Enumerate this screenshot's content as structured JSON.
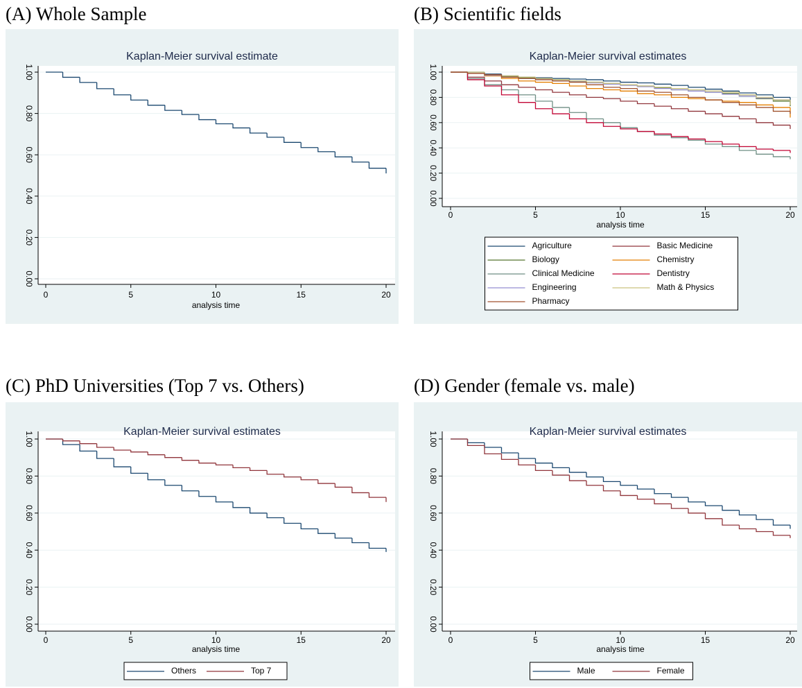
{
  "chart_data": [
    {
      "type": "line",
      "step": true,
      "panel_title": "(A) Whole Sample",
      "title": "Kaplan-Meier survival estimate",
      "x_label": "analysis time",
      "x": [
        0,
        1,
        2,
        3,
        4,
        5,
        6,
        7,
        8,
        9,
        10,
        11,
        12,
        13,
        14,
        15,
        16,
        17,
        18,
        19,
        20
      ],
      "values": [
        1,
        0.975,
        0.95,
        0.92,
        0.89,
        0.865,
        0.84,
        0.815,
        0.795,
        0.77,
        0.75,
        0.73,
        0.705,
        0.685,
        0.66,
        0.635,
        0.615,
        0.59,
        0.565,
        0.535,
        0.51
      ],
      "color": "#1a476f",
      "xlim": [
        0,
        20
      ],
      "xticks": [
        0,
        5,
        10,
        15,
        20
      ],
      "ylim": [
        0,
        1
      ],
      "yticks": [
        {
          "value": 0,
          "label": "0.00"
        },
        {
          "value": 0.2,
          "label": "0.20"
        },
        {
          "value": 0.4,
          "label": "0.40"
        },
        {
          "value": 0.6,
          "label": "0.60"
        },
        {
          "value": 0.8,
          "label": "0.80"
        },
        {
          "value": 1,
          "label": "1.00"
        }
      ],
      "grid": true
    },
    {
      "type": "line",
      "step": true,
      "panel_title": "(B) Scientific fields",
      "title": "Kaplan-Meier survival estimates",
      "x_label": "analysis time",
      "x": [
        0,
        1,
        2,
        3,
        4,
        5,
        6,
        7,
        8,
        9,
        10,
        11,
        12,
        13,
        14,
        15,
        16,
        17,
        18,
        19,
        20
      ],
      "series": [
        {
          "name": "Agriculture",
          "color": "#1a476f",
          "values": [
            1,
            1,
            0.985,
            0.97,
            0.96,
            0.955,
            0.95,
            0.945,
            0.94,
            0.93,
            0.92,
            0.915,
            0.905,
            0.895,
            0.88,
            0.865,
            0.85,
            0.835,
            0.82,
            0.8,
            0.76
          ]
        },
        {
          "name": "Basic Medicine",
          "color": "#90353b",
          "values": [
            1,
            0.96,
            0.93,
            0.9,
            0.88,
            0.86,
            0.84,
            0.82,
            0.8,
            0.79,
            0.77,
            0.75,
            0.73,
            0.71,
            0.69,
            0.67,
            0.65,
            0.63,
            0.6,
            0.58,
            0.55
          ]
        },
        {
          "name": "Biology",
          "color": "#55752f",
          "values": [
            1,
            0.99,
            0.975,
            0.965,
            0.955,
            0.95,
            0.94,
            0.93,
            0.92,
            0.91,
            0.9,
            0.89,
            0.875,
            0.86,
            0.85,
            0.84,
            0.83,
            0.81,
            0.79,
            0.77,
            0.73
          ]
        },
        {
          "name": "Chemistry",
          "color": "#e37e00",
          "values": [
            1,
            0.99,
            0.97,
            0.95,
            0.93,
            0.92,
            0.91,
            0.89,
            0.87,
            0.86,
            0.85,
            0.83,
            0.82,
            0.8,
            0.79,
            0.78,
            0.77,
            0.76,
            0.74,
            0.72,
            0.64
          ]
        },
        {
          "name": "Clinical Medicine",
          "color": "#6e8e84",
          "values": [
            1,
            0.95,
            0.9,
            0.86,
            0.82,
            0.77,
            0.72,
            0.68,
            0.63,
            0.6,
            0.56,
            0.53,
            0.5,
            0.48,
            0.46,
            0.43,
            0.41,
            0.38,
            0.35,
            0.33,
            0.31
          ]
        },
        {
          "name": "Dentistry",
          "color": "#c10534",
          "values": [
            1,
            0.94,
            0.89,
            0.82,
            0.76,
            0.71,
            0.67,
            0.63,
            0.6,
            0.57,
            0.55,
            0.53,
            0.51,
            0.49,
            0.47,
            0.45,
            0.43,
            0.41,
            0.39,
            0.38,
            0.36
          ]
        },
        {
          "name": "Engineering",
          "color": "#938dd2",
          "values": [
            1,
            0.99,
            0.975,
            0.96,
            0.95,
            0.94,
            0.93,
            0.925,
            0.915,
            0.905,
            0.895,
            0.885,
            0.87,
            0.86,
            0.85,
            0.84,
            0.825,
            0.81,
            0.795,
            0.78,
            0.75
          ]
        },
        {
          "name": "Math & Physics",
          "color": "#cac27e",
          "values": [
            1,
            1,
            0.98,
            0.97,
            0.96,
            0.95,
            0.94,
            0.93,
            0.92,
            0.91,
            0.9,
            0.89,
            0.88,
            0.87,
            0.86,
            0.85,
            0.84,
            0.82,
            0.8,
            0.78,
            0.74
          ]
        },
        {
          "name": "Pharmacy",
          "color": "#a0522d",
          "values": [
            1,
            0.99,
            0.98,
            0.96,
            0.95,
            0.94,
            0.93,
            0.92,
            0.9,
            0.88,
            0.87,
            0.85,
            0.84,
            0.82,
            0.8,
            0.78,
            0.76,
            0.74,
            0.72,
            0.69,
            0.67
          ]
        }
      ],
      "xlim": [
        0,
        20
      ],
      "xticks": [
        0,
        5,
        10,
        15,
        20
      ],
      "ylim": [
        0,
        1
      ],
      "yticks": [
        {
          "value": 0,
          "label": "0.00"
        },
        {
          "value": 0.2,
          "label": "0.20"
        },
        {
          "value": 0.4,
          "label": "0.40"
        },
        {
          "value": 0.6,
          "label": "0.60"
        },
        {
          "value": 0.8,
          "label": "0.80"
        },
        {
          "value": 1,
          "label": "1.00"
        }
      ],
      "grid": true,
      "legend": "bottom"
    },
    {
      "type": "line",
      "step": true,
      "panel_title": "(C) PhD Universities (Top 7 vs. Others)",
      "title": "Kaplan-Meier survival estimates",
      "x_label": "analysis time",
      "x": [
        0,
        1,
        2,
        3,
        4,
        5,
        6,
        7,
        8,
        9,
        10,
        11,
        12,
        13,
        14,
        15,
        16,
        17,
        18,
        19,
        20
      ],
      "series": [
        {
          "name": "Others",
          "color": "#1a476f",
          "values": [
            1,
            0.97,
            0.935,
            0.895,
            0.85,
            0.815,
            0.78,
            0.75,
            0.72,
            0.69,
            0.66,
            0.63,
            0.6,
            0.575,
            0.545,
            0.515,
            0.49,
            0.465,
            0.44,
            0.41,
            0.39
          ]
        },
        {
          "name": "Top 7",
          "color": "#90353b",
          "values": [
            1,
            0.99,
            0.975,
            0.955,
            0.94,
            0.93,
            0.915,
            0.9,
            0.885,
            0.87,
            0.86,
            0.845,
            0.83,
            0.81,
            0.795,
            0.78,
            0.76,
            0.74,
            0.71,
            0.685,
            0.66
          ]
        }
      ],
      "xlim": [
        0,
        20
      ],
      "xticks": [
        0,
        5,
        10,
        15,
        20
      ],
      "ylim": [
        0,
        1
      ],
      "yticks": [
        {
          "value": 0,
          "label": "0.00"
        },
        {
          "value": 0.2,
          "label": "0.20"
        },
        {
          "value": 0.4,
          "label": "0.40"
        },
        {
          "value": 0.6,
          "label": "0.60"
        },
        {
          "value": 0.8,
          "label": "0.80"
        },
        {
          "value": 1,
          "label": "1.00"
        }
      ],
      "grid": true,
      "legend": "bottom"
    },
    {
      "type": "line",
      "step": true,
      "panel_title": "(D) Gender (female vs. male)",
      "title": "Kaplan-Meier survival estimates",
      "x_label": "analysis time",
      "x": [
        0,
        1,
        2,
        3,
        4,
        5,
        6,
        7,
        8,
        9,
        10,
        11,
        12,
        13,
        14,
        15,
        16,
        17,
        18,
        19,
        20
      ],
      "series": [
        {
          "name": "Male",
          "color": "#1a476f",
          "values": [
            1,
            0.98,
            0.955,
            0.925,
            0.895,
            0.87,
            0.845,
            0.82,
            0.795,
            0.77,
            0.75,
            0.73,
            0.705,
            0.685,
            0.66,
            0.64,
            0.615,
            0.59,
            0.565,
            0.535,
            0.515
          ]
        },
        {
          "name": "Female",
          "color": "#90353b",
          "values": [
            1,
            0.965,
            0.92,
            0.89,
            0.86,
            0.83,
            0.805,
            0.775,
            0.75,
            0.72,
            0.695,
            0.675,
            0.65,
            0.625,
            0.6,
            0.57,
            0.535,
            0.515,
            0.5,
            0.48,
            0.465
          ]
        }
      ],
      "xlim": [
        0,
        20
      ],
      "xticks": [
        0,
        5,
        10,
        15,
        20
      ],
      "ylim": [
        0,
        1
      ],
      "yticks": [
        {
          "value": 0,
          "label": "0.00"
        },
        {
          "value": 0.2,
          "label": "0.20"
        },
        {
          "value": 0.4,
          "label": "0.40"
        },
        {
          "value": 0.6,
          "label": "0.60"
        },
        {
          "value": 0.8,
          "label": "0.80"
        },
        {
          "value": 1,
          "label": "1.00"
        }
      ],
      "grid": true,
      "legend": "bottom"
    }
  ]
}
